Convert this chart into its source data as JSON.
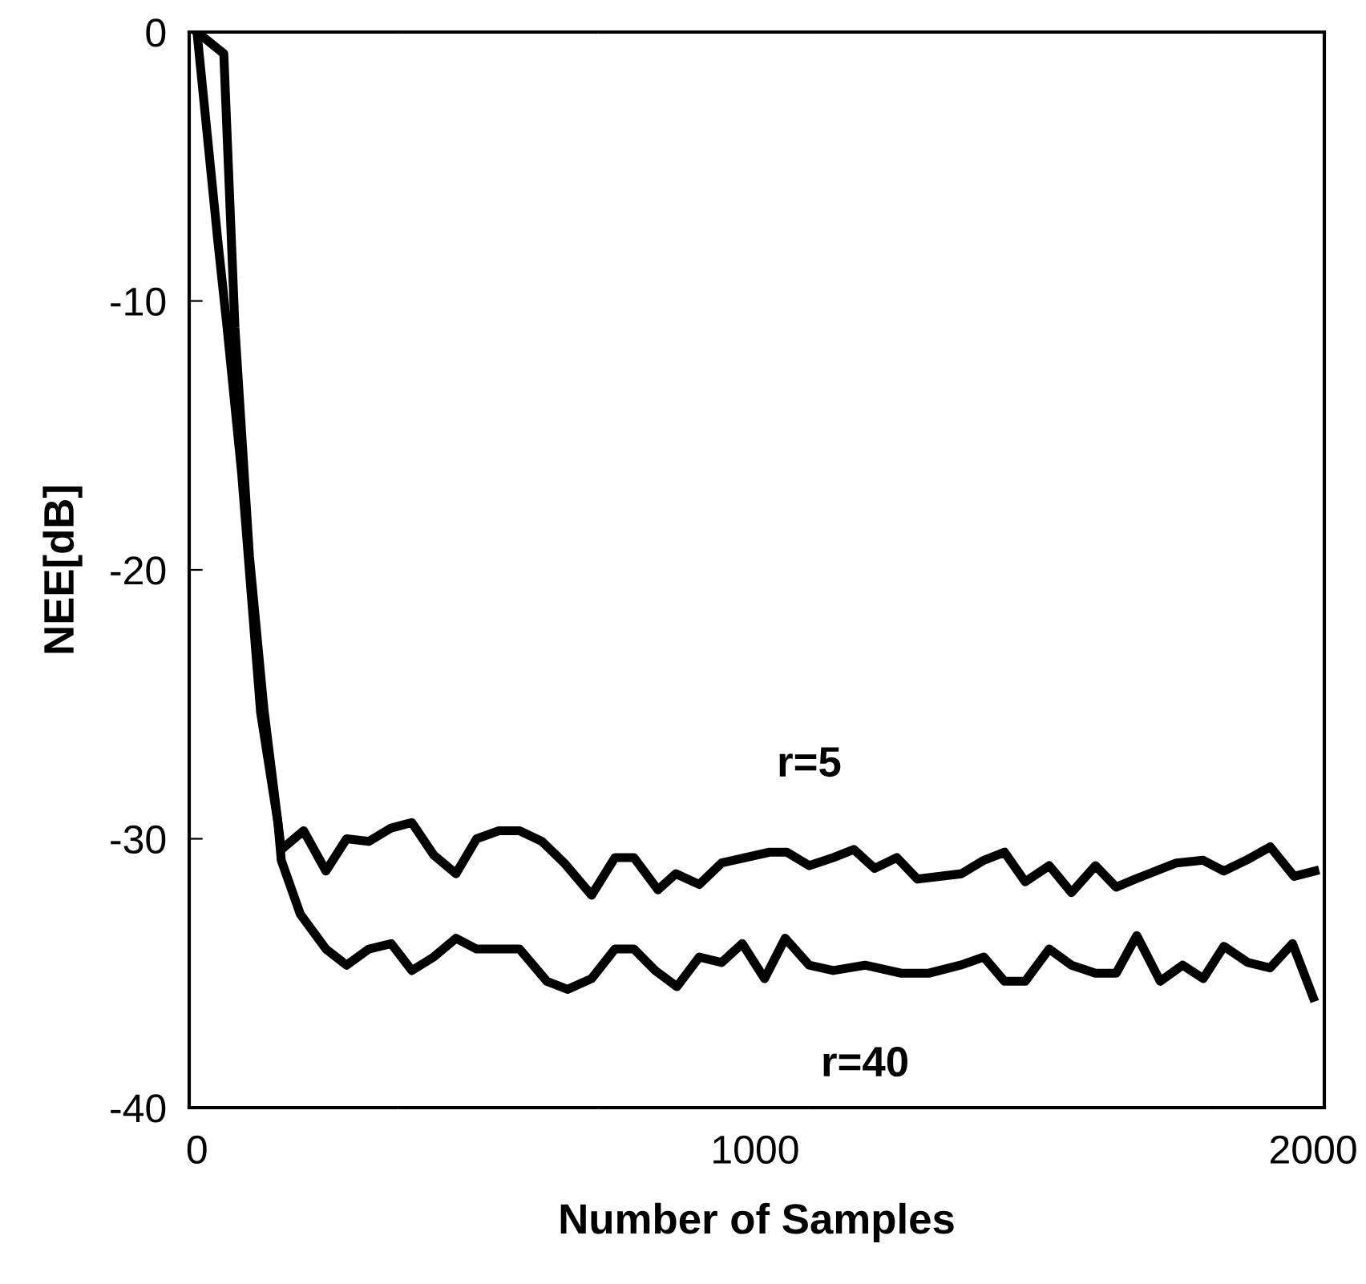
{
  "chart_data": {
    "type": "line",
    "xlabel": "Number of Samples",
    "ylabel": "NEE[dB]",
    "xlim": [
      -14,
      2020
    ],
    "ylim": [
      -40,
      0
    ],
    "xticks": [
      0,
      1000,
      2000
    ],
    "yticks": [
      0,
      -10,
      -20,
      -30,
      -40
    ],
    "grid": false,
    "marker": "none",
    "line_style": "solid",
    "series": [
      {
        "name": "r=5",
        "color": "#000000",
        "x": [
          0,
          48,
          68,
          94,
          120,
          151,
          191,
          231,
          268,
          308,
          348,
          385,
          424,
          464,
          501,
          541,
          578,
          618,
          658,
          707,
          749,
          783,
          826,
          858,
          900,
          940,
          1026,
          1057,
          1097,
          1140,
          1177,
          1214,
          1254,
          1291,
          1370,
          1410,
          1447,
          1484,
          1527,
          1567,
          1610,
          1647,
          1681,
          1755,
          1803,
          1840,
          1880,
          1923,
          1966,
          2003
        ],
        "values": [
          0,
          -0.8,
          -11.0,
          -19.5,
          -25.2,
          -30.4,
          -29.7,
          -31.2,
          -30.0,
          -30.1,
          -29.6,
          -29.4,
          -30.6,
          -31.3,
          -30.0,
          -29.7,
          -29.7,
          -30.1,
          -30.9,
          -32.1,
          -30.7,
          -30.7,
          -31.9,
          -31.3,
          -31.7,
          -30.9,
          -30.5,
          -30.5,
          -31.0,
          -30.7,
          -30.4,
          -31.1,
          -30.7,
          -31.5,
          -31.3,
          -30.8,
          -30.5,
          -31.6,
          -31.0,
          -32.0,
          -31.0,
          -31.8,
          -31.5,
          -30.9,
          -30.8,
          -31.2,
          -30.8,
          -30.3,
          -31.4,
          -31.2
        ]
      },
      {
        "name": "r=40",
        "color": "#000000",
        "x": [
          0,
          37,
          54,
          80,
          114,
          145,
          151,
          185,
          231,
          268,
          308,
          348,
          385,
          424,
          464,
          501,
          578,
          627,
          664,
          707,
          749,
          783,
          821,
          860,
          900,
          940,
          977,
          1017,
          1054,
          1097,
          1140,
          1197,
          1262,
          1311,
          1368,
          1410,
          1447,
          1484,
          1527,
          1567,
          1610,
          1647,
          1684,
          1726,
          1766,
          1803,
          1840,
          1883,
          1923,
          1963,
          2000
        ],
        "values": [
          0,
          -7.7,
          -11.0,
          -16.4,
          -25.3,
          -29.4,
          -30.8,
          -32.8,
          -34.1,
          -34.7,
          -34.1,
          -33.9,
          -34.9,
          -34.4,
          -33.7,
          -34.1,
          -34.1,
          -35.3,
          -35.6,
          -35.2,
          -34.1,
          -34.1,
          -34.9,
          -35.5,
          -34.4,
          -34.6,
          -33.9,
          -35.2,
          -33.7,
          -34.7,
          -34.9,
          -34.7,
          -35.0,
          -35.0,
          -34.7,
          -34.4,
          -35.3,
          -35.3,
          -34.1,
          -34.7,
          -35.0,
          -35.0,
          -33.6,
          -35.3,
          -34.7,
          -35.2,
          -34.0,
          -34.6,
          -34.8,
          -33.9,
          -35.9
        ]
      }
    ]
  }
}
